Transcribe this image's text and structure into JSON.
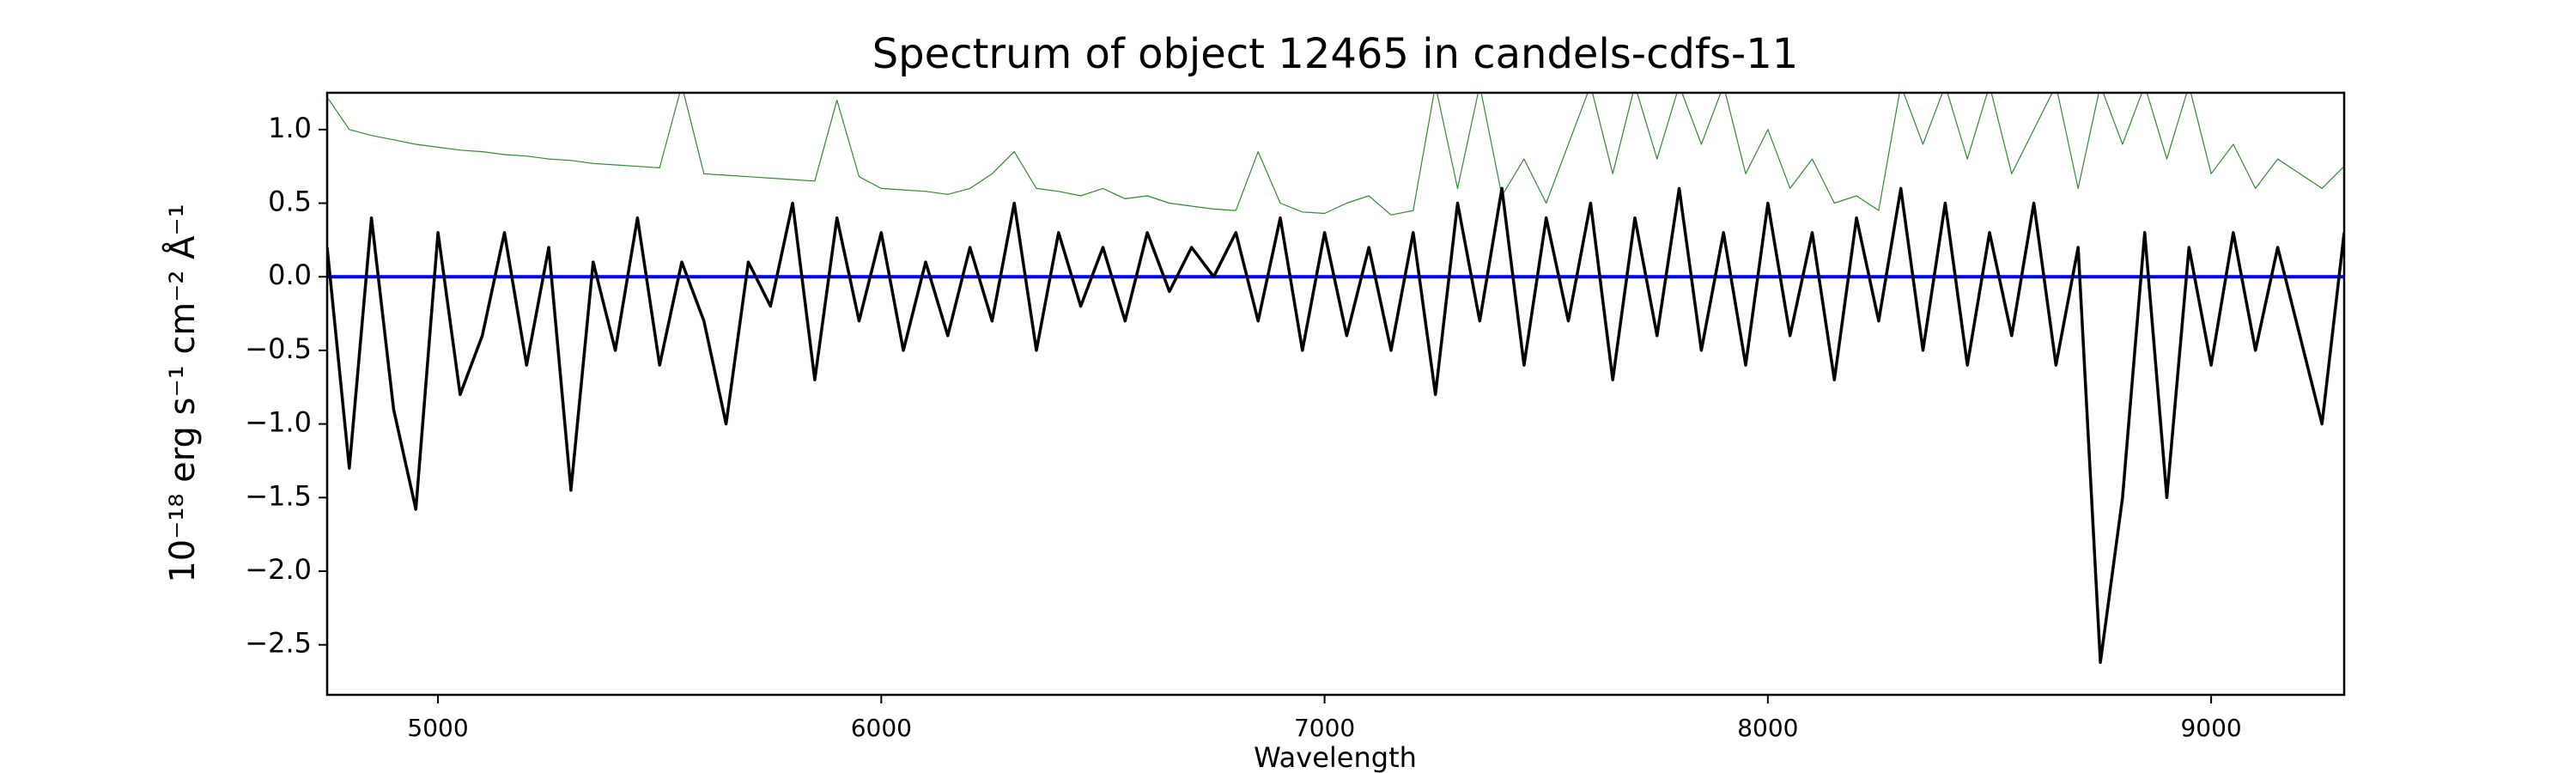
{
  "chart_data": {
    "type": "line",
    "title": "Spectrum of object 12465 in candels-cdfs-11",
    "x_label": "Wavelength",
    "y_label": "10⁻¹⁸ erg s⁻¹ cm⁻² Å⁻¹",
    "x": [
      4750,
      4800,
      4850,
      4900,
      4950,
      5000,
      5050,
      5100,
      5150,
      5200,
      5250,
      5300,
      5350,
      5400,
      5450,
      5500,
      5550,
      5600,
      5650,
      5700,
      5750,
      5800,
      5850,
      5900,
      5950,
      6000,
      6050,
      6100,
      6150,
      6200,
      6250,
      6300,
      6350,
      6400,
      6450,
      6500,
      6550,
      6600,
      6650,
      6700,
      6750,
      6800,
      6850,
      6900,
      6950,
      7000,
      7050,
      7100,
      7150,
      7200,
      7250,
      7300,
      7350,
      7400,
      7450,
      7500,
      7550,
      7600,
      7650,
      7700,
      7750,
      7800,
      7850,
      7900,
      7950,
      8000,
      8050,
      8100,
      8150,
      8200,
      8250,
      8300,
      8350,
      8400,
      8450,
      8500,
      8550,
      8600,
      8650,
      8700,
      8750,
      8800,
      8850,
      8900,
      8950,
      9000,
      9050,
      9100,
      9150,
      9200,
      9250,
      9300
    ],
    "series": [
      {
        "color": "#2e8b2e",
        "width": 1.2,
        "values": [
          1.22,
          1.0,
          0.96,
          0.93,
          0.9,
          0.88,
          0.86,
          0.85,
          0.83,
          0.82,
          0.8,
          0.79,
          0.77,
          0.76,
          0.75,
          0.74,
          1.3,
          0.7,
          0.69,
          0.68,
          0.67,
          0.66,
          0.65,
          1.2,
          0.68,
          0.6,
          0.59,
          0.58,
          0.56,
          0.6,
          0.7,
          0.85,
          0.6,
          0.58,
          0.55,
          0.6,
          0.53,
          0.55,
          0.5,
          0.48,
          0.46,
          0.45,
          0.85,
          0.5,
          0.44,
          0.43,
          0.5,
          0.55,
          0.42,
          0.45,
          1.3,
          0.6,
          1.3,
          0.55,
          0.8,
          0.5,
          0.9,
          1.3,
          0.7,
          1.3,
          0.8,
          1.3,
          0.9,
          1.3,
          0.7,
          1.0,
          0.6,
          0.8,
          0.5,
          0.55,
          0.45,
          1.3,
          0.9,
          1.3,
          0.8,
          1.3,
          0.7,
          1.0,
          1.3,
          0.6,
          1.3,
          0.9,
          1.3,
          0.8,
          1.3,
          0.7,
          0.9,
          0.6,
          0.8,
          0.7,
          0.6,
          0.75
        ]
      },
      {
        "color": "#0000ff",
        "width": 4,
        "values": [
          0,
          0,
          0,
          0,
          0,
          0,
          0,
          0,
          0,
          0,
          0,
          0,
          0,
          0,
          0,
          0,
          0,
          0,
          0,
          0,
          0,
          0,
          0,
          0,
          0,
          0,
          0,
          0,
          0,
          0,
          0,
          0,
          0,
          0,
          0,
          0,
          0,
          0,
          0,
          0,
          0,
          0,
          0,
          0,
          0,
          0,
          0,
          0,
          0,
          0,
          0,
          0,
          0,
          0,
          0,
          0,
          0,
          0,
          0,
          0,
          0,
          0,
          0,
          0,
          0,
          0,
          0,
          0,
          0,
          0,
          0,
          0,
          0,
          0,
          0,
          0,
          0,
          0,
          0,
          0,
          0,
          0,
          0,
          0,
          0,
          0,
          0,
          0,
          0,
          0,
          0,
          0
        ]
      },
      {
        "color": "#000000",
        "width": 3.5,
        "values": [
          0.2,
          -1.3,
          0.4,
          -0.9,
          -1.58,
          0.3,
          -0.8,
          -0.4,
          0.3,
          -0.6,
          0.2,
          -1.45,
          0.1,
          -0.5,
          0.4,
          -0.6,
          0.1,
          -0.3,
          -1.0,
          0.1,
          -0.2,
          0.5,
          -0.7,
          0.4,
          -0.3,
          0.3,
          -0.5,
          0.1,
          -0.4,
          0.2,
          -0.3,
          0.5,
          -0.5,
          0.3,
          -0.2,
          0.2,
          -0.3,
          0.3,
          -0.1,
          0.2,
          0.0,
          0.3,
          -0.3,
          0.4,
          -0.5,
          0.3,
          -0.4,
          0.2,
          -0.5,
          0.3,
          -0.8,
          0.5,
          -0.3,
          0.6,
          -0.6,
          0.4,
          -0.3,
          0.5,
          -0.7,
          0.4,
          -0.4,
          0.6,
          -0.5,
          0.3,
          -0.6,
          0.5,
          -0.4,
          0.3,
          -0.7,
          0.4,
          -0.3,
          0.6,
          -0.5,
          0.5,
          -0.6,
          0.3,
          -0.4,
          0.5,
          -0.6,
          0.2,
          -2.62,
          -1.5,
          0.3,
          -1.5,
          0.2,
          -0.6,
          0.3,
          -0.5,
          0.2,
          -0.4,
          -1.0,
          0.3
        ]
      }
    ],
    "xlim": [
      4750,
      9300
    ],
    "ylim": [
      -2.84,
      1.25
    ],
    "xticks": [
      5000,
      6000,
      7000,
      8000,
      9000
    ],
    "yticks": [
      {
        "value": -2.5,
        "label": "−2.5"
      },
      {
        "value": -2,
        "label": "−2.0"
      },
      {
        "value": -1.5,
        "label": "−1.5"
      },
      {
        "value": -1,
        "label": "−1.0"
      },
      {
        "value": -0.5,
        "label": "−0.5"
      },
      {
        "value": 0,
        "label": "0.0"
      },
      0.5,
      {
        "value": 1,
        "label": "1.0"
      }
    ]
  }
}
